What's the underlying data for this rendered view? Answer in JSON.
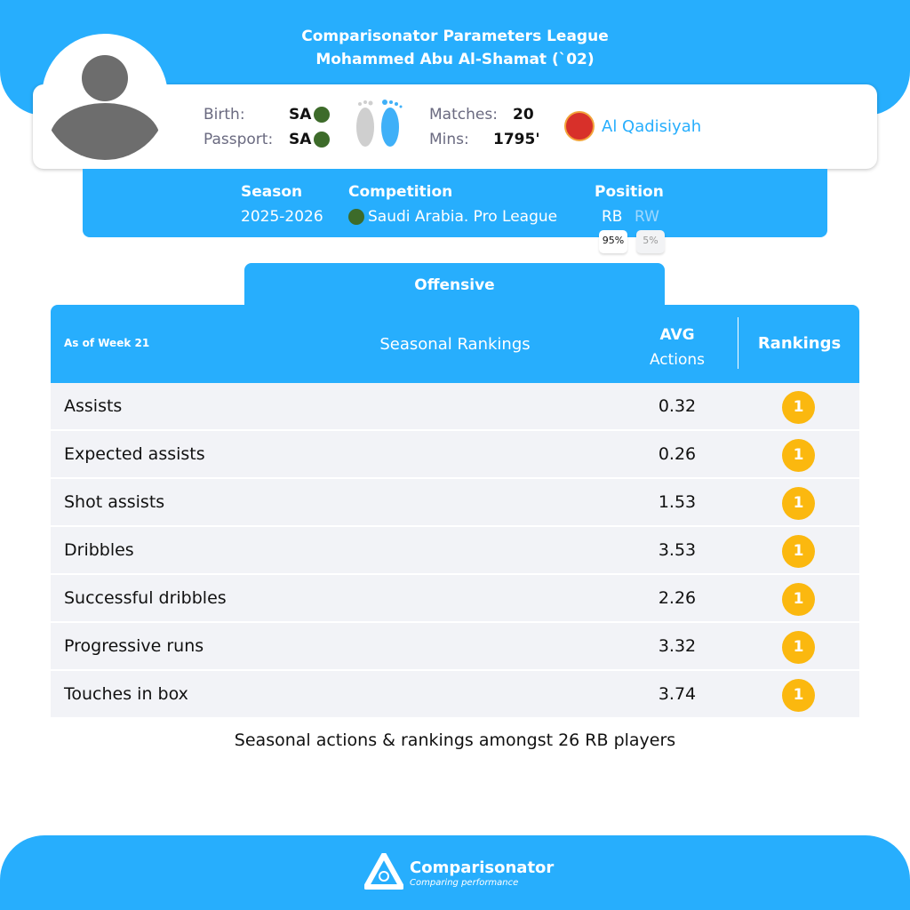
{
  "header": {
    "line1": "Comparisonator Parameters League",
    "line2": "Mohammed Abu Al-Shamat (`02)"
  },
  "player": {
    "birth_label": "Birth:",
    "birth_value": "SA",
    "passport_label": "Passport:",
    "passport_value": "SA",
    "dominant_foot": "right",
    "matches_label": "Matches:",
    "matches_value": "20",
    "mins_label": "Mins:",
    "mins_value": "1795'",
    "club": "Al Qadisiyah"
  },
  "info": {
    "season_label": "Season",
    "season_value": "2025-2026",
    "competition_label": "Competition",
    "competition_value": "Saudi Arabia. Pro League",
    "position_label": "Position",
    "positions": [
      {
        "name": "RB",
        "pct": "95%"
      },
      {
        "name": "RW",
        "pct": "5%"
      }
    ]
  },
  "tab": "Offensive",
  "table": {
    "week": "As of Week 21",
    "title": "Seasonal Rankings",
    "avg_line1": "AVG",
    "avg_line2": "Actions",
    "rankings": "Rankings",
    "rows": [
      {
        "name": "Assists",
        "avg": "0.32",
        "rank": "1"
      },
      {
        "name": "Expected assists",
        "avg": "0.26",
        "rank": "1"
      },
      {
        "name": "Shot assists",
        "avg": "1.53",
        "rank": "1"
      },
      {
        "name": "Dribbles",
        "avg": "3.53",
        "rank": "1"
      },
      {
        "name": "Successful dribbles",
        "avg": "2.26",
        "rank": "1"
      },
      {
        "name": "Progressive runs",
        "avg": "3.32",
        "rank": "1"
      },
      {
        "name": "Touches in box",
        "avg": "3.74",
        "rank": "1"
      }
    ]
  },
  "note": "Seasonal actions & rankings amongst 26 RB players",
  "footer": {
    "brand": "Comparisonator",
    "tagline": "Comparing performance"
  },
  "colors": {
    "primary": "#27aefd",
    "badge": "#fbb80f"
  }
}
